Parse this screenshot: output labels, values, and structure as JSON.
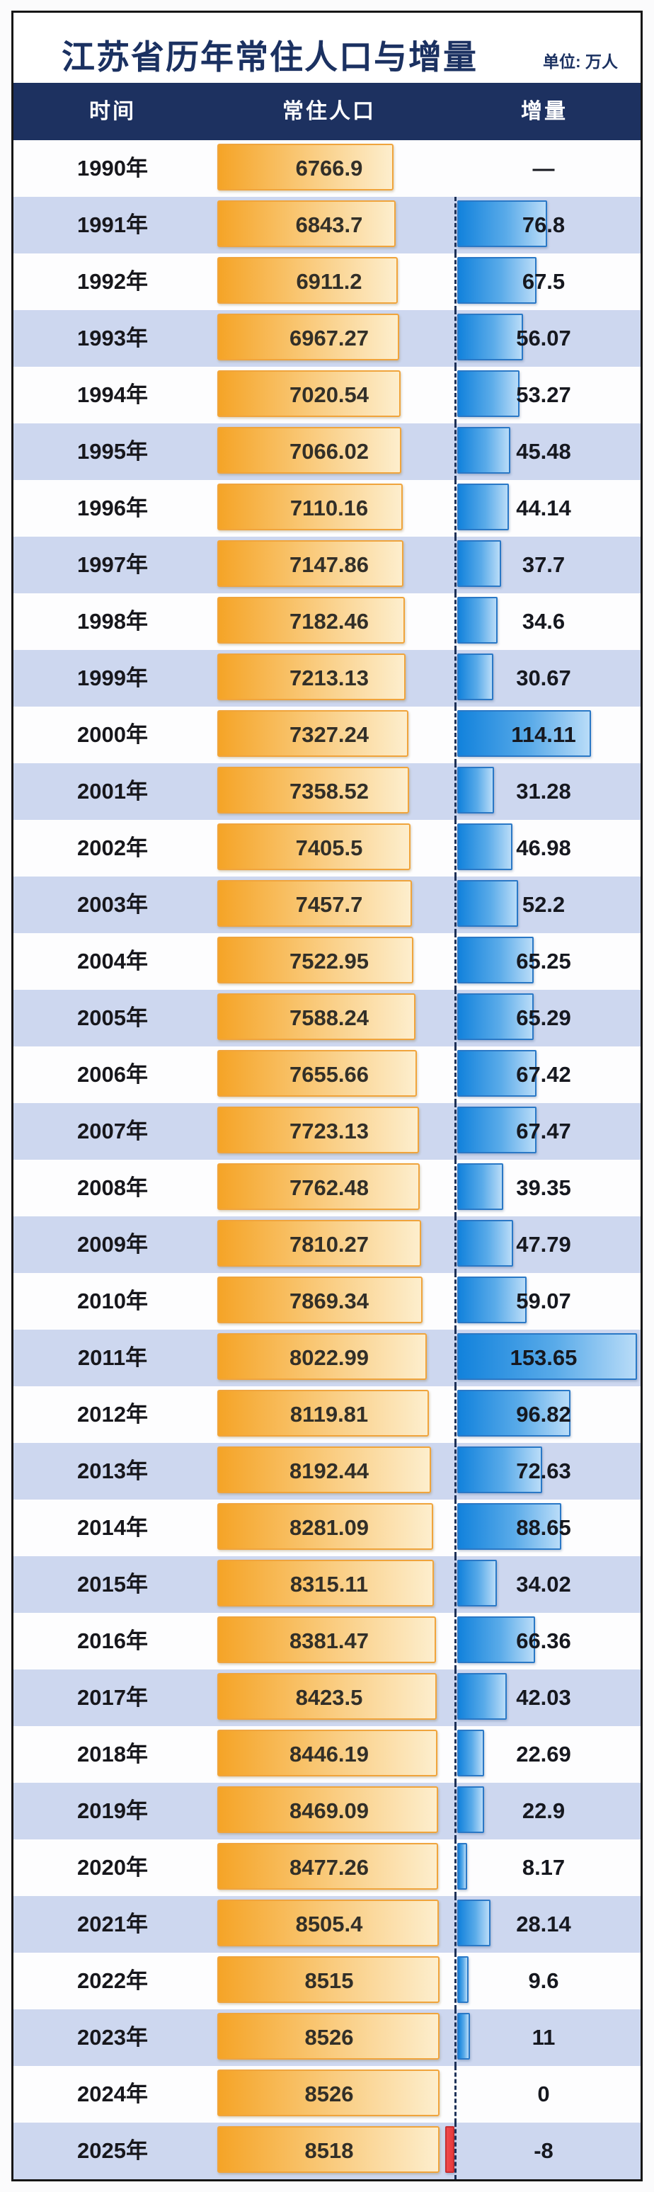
{
  "title": "江苏省历年常住人口与增量",
  "unit_label": "单位: 万人",
  "columns": {
    "time": "时间",
    "population": "常住人口",
    "increment": "增量"
  },
  "colors": {
    "header_bg": "#1d3160",
    "title_text": "#1b3161",
    "alt_row_bg": "#cdd7ef",
    "population_bar": "#f5a427",
    "population_bar_border": "#f0a43c",
    "increment_bar": "#1282dc",
    "increment_bar_border": "#2a78c6",
    "negative_bar": "#e7393c",
    "baseline_dash": "#1d3158",
    "frame_border": "#161616"
  },
  "chart_data": {
    "type": "bar",
    "title": "江苏省历年常住人口与增量",
    "unit": "万人",
    "orientation": "horizontal",
    "categories": [
      "1990年",
      "1991年",
      "1992年",
      "1993年",
      "1994年",
      "1995年",
      "1996年",
      "1997年",
      "1998年",
      "1999年",
      "2000年",
      "2001年",
      "2002年",
      "2003年",
      "2004年",
      "2005年",
      "2006年",
      "2007年",
      "2008年",
      "2009年",
      "2010年",
      "2011年",
      "2012年",
      "2013年",
      "2014年",
      "2015年",
      "2016年",
      "2017年",
      "2018年",
      "2019年",
      "2020年",
      "2021年",
      "2022年",
      "2023年",
      "2024年",
      "2025年"
    ],
    "series": [
      {
        "name": "常住人口",
        "values": [
          6766.9,
          6843.7,
          6911.2,
          6967.27,
          7020.54,
          7066.02,
          7110.16,
          7147.86,
          7182.46,
          7213.13,
          7327.24,
          7358.52,
          7405.5,
          7457.7,
          7522.95,
          7588.24,
          7655.66,
          7723.13,
          7762.48,
          7810.27,
          7869.34,
          8022.99,
          8119.81,
          8192.44,
          8281.09,
          8315.11,
          8381.47,
          8423.5,
          8446.19,
          8469.09,
          8477.26,
          8505.4,
          8515,
          8526,
          8526,
          8518
        ]
      },
      {
        "name": "增量",
        "values": [
          null,
          76.8,
          67.5,
          56.07,
          53.27,
          45.48,
          44.14,
          37.7,
          34.6,
          30.67,
          114.11,
          31.28,
          46.98,
          52.2,
          65.25,
          65.29,
          67.42,
          67.47,
          39.35,
          47.79,
          59.07,
          153.65,
          96.82,
          72.63,
          88.65,
          34.02,
          66.36,
          42.03,
          22.69,
          22.9,
          8.17,
          28.14,
          9.6,
          11,
          0,
          -8
        ]
      }
    ]
  },
  "rows": [
    {
      "year": "1990年",
      "population": "6766.9",
      "increment": "—"
    },
    {
      "year": "1991年",
      "population": "6843.7",
      "increment": "76.8"
    },
    {
      "year": "1992年",
      "population": "6911.2",
      "increment": "67.5"
    },
    {
      "year": "1993年",
      "population": "6967.27",
      "increment": "56.07"
    },
    {
      "year": "1994年",
      "population": "7020.54",
      "increment": "53.27"
    },
    {
      "year": "1995年",
      "population": "7066.02",
      "increment": "45.48"
    },
    {
      "year": "1996年",
      "population": "7110.16",
      "increment": "44.14"
    },
    {
      "year": "1997年",
      "population": "7147.86",
      "increment": "37.7"
    },
    {
      "year": "1998年",
      "population": "7182.46",
      "increment": "34.6"
    },
    {
      "year": "1999年",
      "population": "7213.13",
      "increment": "30.67"
    },
    {
      "year": "2000年",
      "population": "7327.24",
      "increment": "114.11"
    },
    {
      "year": "2001年",
      "population": "7358.52",
      "increment": "31.28"
    },
    {
      "year": "2002年",
      "population": "7405.5",
      "increment": "46.98"
    },
    {
      "year": "2003年",
      "population": "7457.7",
      "increment": "52.2"
    },
    {
      "year": "2004年",
      "population": "7522.95",
      "increment": "65.25"
    },
    {
      "year": "2005年",
      "population": "7588.24",
      "increment": "65.29"
    },
    {
      "year": "2006年",
      "population": "7655.66",
      "increment": "67.42"
    },
    {
      "year": "2007年",
      "population": "7723.13",
      "increment": "67.47"
    },
    {
      "year": "2008年",
      "population": "7762.48",
      "increment": "39.35"
    },
    {
      "year": "2009年",
      "population": "7810.27",
      "increment": "47.79"
    },
    {
      "year": "2010年",
      "population": "7869.34",
      "increment": "59.07"
    },
    {
      "year": "2011年",
      "population": "8022.99",
      "increment": "153.65"
    },
    {
      "year": "2012年",
      "population": "8119.81",
      "increment": "96.82"
    },
    {
      "year": "2013年",
      "population": "8192.44",
      "increment": "72.63"
    },
    {
      "year": "2014年",
      "population": "8281.09",
      "increment": "88.65"
    },
    {
      "year": "2015年",
      "population": "8315.11",
      "increment": "34.02"
    },
    {
      "year": "2016年",
      "population": "8381.47",
      "increment": "66.36"
    },
    {
      "year": "2017年",
      "population": "8423.5",
      "increment": "42.03"
    },
    {
      "year": "2018年",
      "population": "8446.19",
      "increment": "22.69"
    },
    {
      "year": "2019年",
      "population": "8469.09",
      "increment": "22.9"
    },
    {
      "year": "2020年",
      "population": "8477.26",
      "increment": "8.17"
    },
    {
      "year": "2021年",
      "population": "8505.4",
      "increment": "28.14"
    },
    {
      "year": "2022年",
      "population": "8515",
      "increment": "9.6"
    },
    {
      "year": "2023年",
      "population": "8526",
      "increment": "11"
    },
    {
      "year": "2024年",
      "population": "8526",
      "increment": "0"
    },
    {
      "year": "2025年",
      "population": "8518",
      "increment": "-8"
    }
  ]
}
